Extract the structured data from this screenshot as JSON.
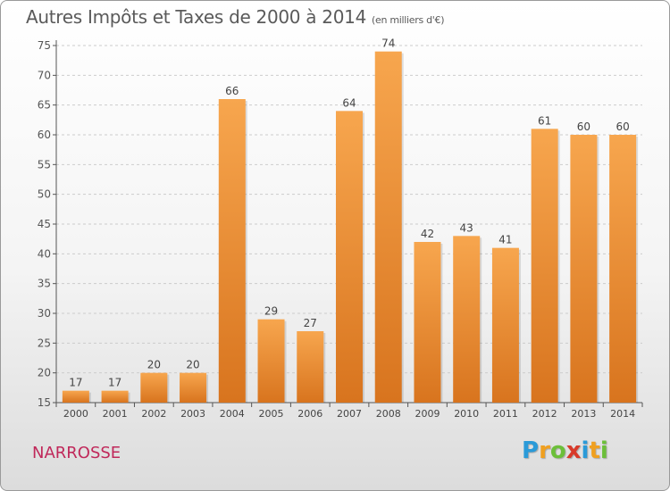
{
  "title": "Autres Impôts et Taxes de 2000 à 2014",
  "subtitle": "(en milliers d'€)",
  "town": "NARROSSE",
  "logo": {
    "letters": [
      "P",
      "r",
      "o",
      "x",
      "i",
      "t",
      "i"
    ],
    "colors": [
      "#2a9ad8",
      "#f0a020",
      "#6cbf3a",
      "#d83a2a",
      "#2a9ad8",
      "#f0a020",
      "#6cbf3a"
    ]
  },
  "colors": {
    "bar_light": "#f7a64e",
    "bar_dark": "#d8741e",
    "axis": "#555555",
    "grid": "#cccccc"
  },
  "chart_data": {
    "type": "bar",
    "title": "Autres Impôts et Taxes de 2000 à 2014",
    "categories": [
      "2000",
      "2001",
      "2002",
      "2003",
      "2004",
      "2005",
      "2006",
      "2007",
      "2008",
      "2009",
      "2010",
      "2011",
      "2012",
      "2013",
      "2014"
    ],
    "values": [
      17,
      17,
      20,
      20,
      66,
      29,
      27,
      64,
      74,
      42,
      43,
      41,
      61,
      60,
      60
    ],
    "ylim": [
      15,
      75
    ],
    "yticks": [
      15,
      20,
      25,
      30,
      35,
      40,
      45,
      50,
      55,
      60,
      65,
      70,
      75
    ],
    "grid": true,
    "data_labels": true
  }
}
